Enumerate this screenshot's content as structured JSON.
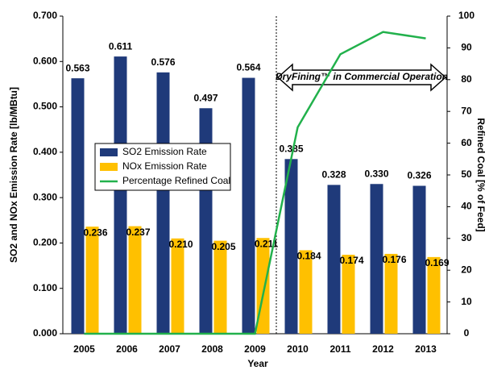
{
  "chart_data": {
    "type": "bar",
    "categories": [
      "2005",
      "2006",
      "2007",
      "2008",
      "2009",
      "2010",
      "2011",
      "2012",
      "2013"
    ],
    "series": [
      {
        "name": "SO2 Emission Rate",
        "color": "#1f3a7a",
        "type": "bar",
        "values": [
          0.563,
          0.611,
          0.576,
          0.497,
          0.564,
          0.385,
          0.328,
          0.33,
          0.326
        ],
        "value_labels": [
          "0.563",
          "0.611",
          "0.576",
          "0.497",
          "0.564",
          "0.385",
          "0.328",
          "0.330",
          "0.326"
        ]
      },
      {
        "name": "NOx Emission Rate",
        "color": "#ffc000",
        "type": "bar",
        "values": [
          0.236,
          0.237,
          0.21,
          0.205,
          0.211,
          0.184,
          0.174,
          0.176,
          0.169
        ],
        "value_labels": [
          "0.236",
          "0.237",
          "0.210",
          "0.205",
          "0.211",
          "0.184",
          "0.174",
          "0.176",
          "0.169"
        ]
      },
      {
        "name": "Percentage Refined Coal",
        "color": "#22b14c",
        "type": "line",
        "axis": "y2",
        "values": [
          0,
          0,
          0,
          0,
          0,
          65,
          88,
          95,
          93
        ]
      }
    ],
    "x_label": "Year",
    "y_label": "SO2 and NOx Emission Rate [lb/MBtu]",
    "y2_label": "Refined Coal [% of Feed]",
    "annotation": "DryFining™ in Commercial Operation",
    "ylim": [
      0,
      0.7
    ],
    "yticks": [
      {
        "value": 0,
        "label": "0.000"
      },
      {
        "value": 0.1,
        "label": "0.100"
      },
      {
        "value": 0.2,
        "label": "0.200"
      },
      {
        "value": 0.3,
        "label": "0.300"
      },
      {
        "value": 0.4,
        "label": "0.400"
      },
      {
        "value": 0.5,
        "label": "0.500"
      },
      {
        "value": 0.6,
        "label": "0.600"
      },
      {
        "value": 0.7,
        "label": "0.700"
      }
    ],
    "y2lim": [
      0,
      100
    ],
    "y2ticks": [
      0,
      10,
      20,
      30,
      40,
      50,
      60,
      70,
      80,
      90,
      100
    ],
    "grid": false
  }
}
